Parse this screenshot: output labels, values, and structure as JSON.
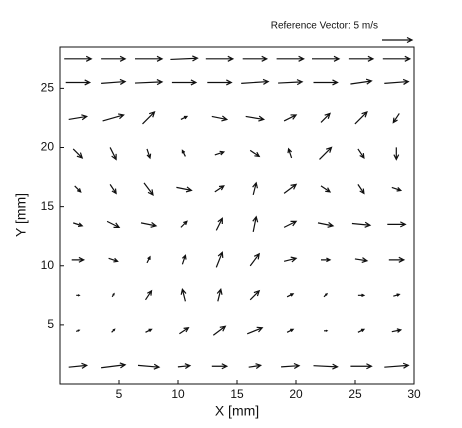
{
  "chart_data": {
    "type": "quiver",
    "xlabel": "X [mm]",
    "ylabel": "Y [mm]",
    "reference_vector": {
      "label": "Reference Vector: 5 m/s",
      "value": 5
    },
    "xlim": [
      0,
      30
    ],
    "ylim": [
      0,
      28.5
    ],
    "xticks": [
      5,
      10,
      15,
      20,
      25,
      30
    ],
    "yticks": [
      5,
      10,
      15,
      20,
      25
    ],
    "color": "#111111",
    "x": [
      1.5,
      4.5,
      7.5,
      10.5,
      13.5,
      16.5,
      19.5,
      22.5,
      25.5,
      28.5
    ],
    "y": [
      1.5,
      4.5,
      7.5,
      10.5,
      13.5,
      16.5,
      19.5,
      22.5,
      25.5,
      27.5
    ],
    "u": [
      [
        3,
        4,
        3.5,
        2,
        2.5,
        2,
        3,
        4,
        3.5,
        4
      ],
      [
        0.5,
        0.5,
        1,
        1.5,
        2,
        2.5,
        1,
        0.5,
        1,
        1.5
      ],
      [
        0.5,
        0.3,
        1,
        -0.5,
        0.5,
        1.5,
        1,
        0.5,
        1,
        1
      ],
      [
        2,
        1.5,
        0.5,
        0.5,
        1,
        1.5,
        2,
        1.5,
        2,
        2.5
      ],
      [
        1.5,
        2,
        2.5,
        1,
        1,
        0.5,
        2,
        2.5,
        3,
        3
      ],
      [
        1,
        1,
        1.5,
        2.5,
        1.5,
        0.5,
        2,
        1.5,
        1,
        1.5
      ],
      [
        1.5,
        1,
        0.5,
        -0.5,
        1.5,
        1.5,
        -0.5,
        2,
        1,
        0
      ],
      [
        3,
        3.5,
        2,
        1,
        2.5,
        3,
        2,
        1.5,
        2,
        -1
      ],
      [
        4,
        4,
        4.5,
        4,
        4,
        4.5,
        4,
        4,
        3.5,
        4
      ],
      [
        4.5,
        4,
        4.5,
        4.5,
        4.5,
        4,
        4.5,
        4.5,
        4,
        4.5
      ]
    ],
    "v": [
      [
        0.3,
        0.5,
        -0.3,
        0.2,
        0,
        0.3,
        0.2,
        -0.2,
        0,
        0.3
      ],
      [
        0.2,
        0.5,
        0.5,
        1,
        1.5,
        1,
        0.5,
        0,
        0.5,
        0.3
      ],
      [
        0,
        0.5,
        1.5,
        2,
        2,
        1.5,
        0.5,
        0.5,
        0,
        0.3
      ],
      [
        0,
        -0.5,
        1,
        1.5,
        2.5,
        2,
        0.5,
        0,
        -0.3,
        0
      ],
      [
        -0.5,
        -1,
        -0.5,
        1,
        2,
        2.5,
        1,
        -0.5,
        -0.3,
        0
      ],
      [
        -1,
        -1.5,
        -2,
        -0.5,
        1,
        2,
        1.5,
        -1,
        -1.5,
        -0.5
      ],
      [
        -1.5,
        -2,
        -1.5,
        1,
        0.5,
        -1,
        1.5,
        2,
        -1.5,
        -2
      ],
      [
        0.5,
        1,
        2,
        0.5,
        -0.5,
        -0.5,
        1,
        1.5,
        2,
        -1.5
      ],
      [
        0,
        0.3,
        0.2,
        0,
        0,
        0.3,
        0.2,
        0,
        0.5,
        0.3
      ],
      [
        0,
        0,
        0,
        0.2,
        0,
        0,
        0,
        0,
        0,
        0
      ]
    ]
  }
}
